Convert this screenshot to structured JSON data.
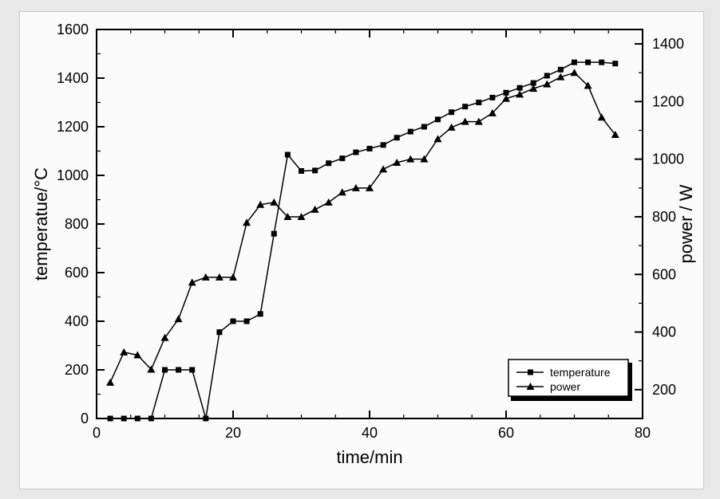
{
  "chart": {
    "type": "line-dual-axis",
    "background_color": "#fbfbfb",
    "plot_border_color": "#000000",
    "x_axis": {
      "label": "time/min",
      "min": 0,
      "max": 80,
      "major_ticks": [
        0,
        20,
        40,
        60,
        80
      ],
      "minor_step": 5,
      "label_fontsize": 22,
      "tick_fontsize": 18
    },
    "y_left": {
      "label": "temperatue/°C",
      "min": 0,
      "max": 1600,
      "major_ticks": [
        0,
        200,
        400,
        600,
        800,
        1000,
        1200,
        1400,
        1600
      ],
      "minor_step": 100,
      "label_fontsize": 22,
      "tick_fontsize": 18
    },
    "y_right": {
      "label": "power / W",
      "min": 100,
      "max": 1450,
      "major_ticks": [
        200,
        400,
        600,
        800,
        1000,
        1200,
        1400
      ],
      "minor_step": 100,
      "label_fontsize": 22,
      "tick_fontsize": 18
    },
    "series": {
      "temperature": {
        "label": "temperature",
        "marker": "square",
        "marker_size": 7,
        "line_width": 1.5,
        "color": "#000000",
        "x": [
          2,
          4,
          6,
          8,
          10,
          12,
          14,
          16,
          18,
          20,
          22,
          24,
          26,
          28,
          30,
          32,
          34,
          36,
          38,
          40,
          42,
          44,
          46,
          48,
          50,
          52,
          54,
          56,
          58,
          60,
          62,
          64,
          66,
          68,
          70,
          72,
          74,
          76
        ],
        "y": [
          0,
          0,
          0,
          0,
          200,
          200,
          200,
          0,
          355,
          400,
          400,
          430,
          760,
          1085,
          1018,
          1020,
          1050,
          1070,
          1095,
          1110,
          1125,
          1155,
          1180,
          1200,
          1230,
          1260,
          1283,
          1300,
          1320,
          1340,
          1360,
          1380,
          1410,
          1435,
          1465,
          1465,
          1465,
          1460
        ]
      },
      "power": {
        "label": "power",
        "marker": "triangle",
        "marker_size": 8,
        "line_width": 1.5,
        "color": "#000000",
        "x": [
          2,
          4,
          6,
          8,
          10,
          12,
          14,
          16,
          18,
          20,
          22,
          24,
          26,
          28,
          30,
          32,
          34,
          36,
          38,
          40,
          42,
          44,
          46,
          48,
          50,
          52,
          54,
          56,
          58,
          60,
          62,
          64,
          66,
          68,
          70,
          72,
          74,
          76
        ],
        "y": [
          225,
          330,
          320,
          270,
          380,
          445,
          572,
          590,
          590,
          590,
          780,
          842,
          850,
          800,
          800,
          825,
          850,
          885,
          900,
          900,
          965,
          988,
          1000,
          1000,
          1070,
          1110,
          1130,
          1130,
          1160,
          1210,
          1225,
          1245,
          1260,
          1285,
          1300,
          1255,
          1145,
          1085
        ]
      }
    },
    "legend": {
      "position": "bottom-right",
      "items": [
        "temperature",
        "power"
      ],
      "fontsize": 14,
      "border_color": "#000000",
      "fill": "#ffffff"
    }
  }
}
